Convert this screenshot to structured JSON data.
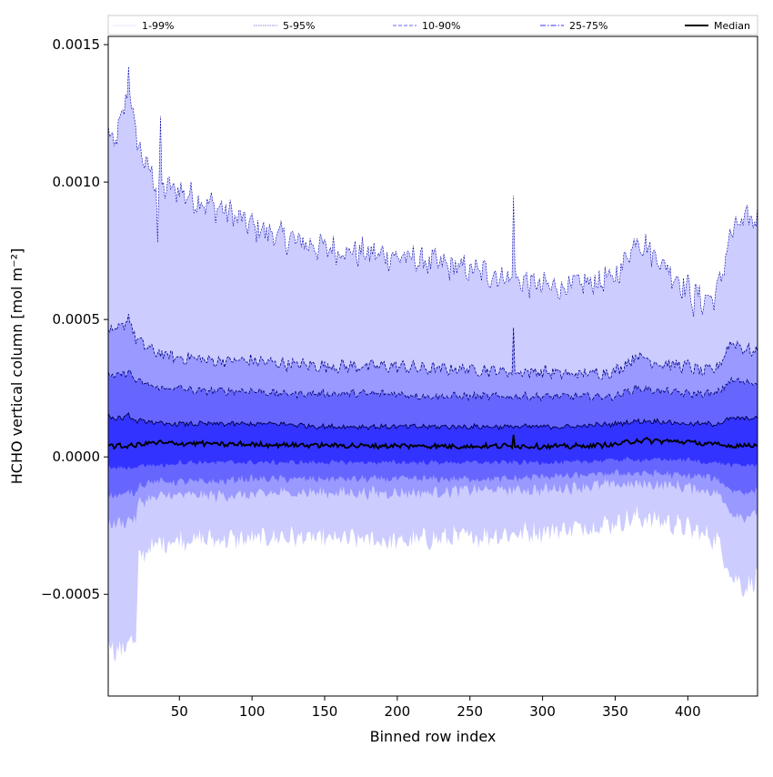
{
  "chart_data": {
    "type": "area",
    "title": "",
    "xlabel": "Binned row index",
    "ylabel": "HCHO vertical column [mol m⁻²]",
    "xlim": [
      1,
      448
    ],
    "ylim": [
      -0.00087,
      0.00153
    ],
    "xticks": [
      50,
      100,
      150,
      200,
      250,
      300,
      350,
      400
    ],
    "xtick_labels": [
      "50",
      "100",
      "150",
      "200",
      "250",
      "300",
      "350",
      "400"
    ],
    "yticks": [
      -0.0005,
      0.0,
      0.0005,
      0.001,
      0.0015
    ],
    "ytick_labels": [
      "−0.0005",
      "0.0000",
      "0.0005",
      "0.0010",
      "0.0015"
    ],
    "grid": false,
    "legend_position": "top",
    "legend": [
      {
        "label": "1-99%",
        "color": "#ccccff",
        "style": "solid-thin"
      },
      {
        "label": "5-95%",
        "color": "#9999ff",
        "style": "dotted"
      },
      {
        "label": "10-90%",
        "color": "#6666ff",
        "style": "dashed"
      },
      {
        "label": "25-75%",
        "color": "#3333ff",
        "style": "dashdot"
      },
      {
        "label": "Median",
        "color": "#000000",
        "style": "solid"
      }
    ],
    "x_knots": [
      1,
      5,
      10,
      15,
      20,
      22,
      25,
      30,
      35,
      40,
      50,
      60,
      70,
      80,
      90,
      100,
      120,
      150,
      180,
      200,
      220,
      250,
      280,
      300,
      320,
      350,
      365,
      380,
      400,
      410,
      420,
      430,
      440,
      448
    ],
    "series": [
      {
        "name": "1-99%",
        "fill": "#ccccff",
        "upper": [
          0.00118,
          0.00113,
          0.00122,
          0.00136,
          0.00118,
          0.00112,
          0.00109,
          0.00103,
          0.001,
          0.00098,
          0.00097,
          0.00094,
          0.00092,
          0.0009,
          0.00087,
          0.00084,
          0.0008,
          0.00076,
          0.00074,
          0.00073,
          0.00071,
          0.00068,
          0.00065,
          0.00062,
          0.00062,
          0.00065,
          0.0008,
          0.00072,
          0.00061,
          0.00057,
          0.00059,
          0.00082,
          0.00086,
          0.00087
        ],
        "lower": [
          -0.00066,
          -0.0007,
          -0.00071,
          -0.00066,
          -0.00068,
          -0.00038,
          -0.00035,
          -0.00033,
          -0.00032,
          -0.00031,
          -0.0003,
          -0.0003,
          -0.0003,
          -0.0003,
          -0.0003,
          -0.0003,
          -0.00029,
          -0.0003,
          -0.0003,
          -0.00031,
          -0.0003,
          -0.00029,
          -0.00028,
          -0.00027,
          -0.00026,
          -0.00024,
          -0.00022,
          -0.00023,
          -0.00026,
          -0.00028,
          -0.0003,
          -0.00043,
          -0.00048,
          -0.00043
        ]
      },
      {
        "name": "5-95%",
        "fill": "#9999ff",
        "upper": [
          0.00046,
          0.00045,
          0.00047,
          0.00051,
          0.00043,
          0.00042,
          0.00041,
          0.00039,
          0.00038,
          0.00037,
          0.00036,
          0.00036,
          0.00035,
          0.00035,
          0.00035,
          0.00035,
          0.00034,
          0.00033,
          0.00033,
          0.00033,
          0.00032,
          0.00032,
          0.00031,
          0.00031,
          0.0003,
          0.00031,
          0.00037,
          0.00034,
          0.00033,
          0.00031,
          0.00032,
          0.00042,
          0.00039,
          0.00038
        ],
        "lower": [
          -0.00025,
          -0.00024,
          -0.00024,
          -0.00023,
          -0.00022,
          -0.00017,
          -0.00016,
          -0.00015,
          -0.00015,
          -0.00014,
          -0.00014,
          -0.00014,
          -0.00014,
          -0.00014,
          -0.00014,
          -0.00014,
          -0.00013,
          -0.00013,
          -0.00013,
          -0.00013,
          -0.00013,
          -0.00012,
          -0.00012,
          -0.00012,
          -0.00011,
          -0.0001,
          -0.0001,
          -0.0001,
          -0.00011,
          -0.00012,
          -0.00013,
          -0.0002,
          -0.00022,
          -0.0002
        ]
      },
      {
        "name": "10-90%",
        "fill": "#6666ff",
        "upper": [
          0.0003,
          0.00029,
          0.0003,
          0.00031,
          0.00028,
          0.00027,
          0.00027,
          0.00026,
          0.00025,
          0.00025,
          0.00025,
          0.00024,
          0.00024,
          0.00024,
          0.00024,
          0.00024,
          0.00023,
          0.00023,
          0.00023,
          0.00023,
          0.00022,
          0.00022,
          0.00022,
          0.00022,
          0.00022,
          0.00022,
          0.00025,
          0.00024,
          0.00023,
          0.00023,
          0.00023,
          0.00028,
          0.00027,
          0.00027
        ],
        "lower": [
          -0.00014,
          -0.00014,
          -0.00014,
          -0.00013,
          -0.00013,
          -0.0001,
          -0.0001,
          -9e-05,
          -9e-05,
          -9e-05,
          -9e-05,
          -9e-05,
          -9e-05,
          -9e-05,
          -8e-05,
          -8e-05,
          -8e-05,
          -8e-05,
          -8e-05,
          -8e-05,
          -8e-05,
          -8e-05,
          -8e-05,
          -7e-05,
          -7e-05,
          -6e-05,
          -6e-05,
          -6e-05,
          -7e-05,
          -7e-05,
          -8e-05,
          -0.00012,
          -0.00013,
          -0.00012
        ]
      },
      {
        "name": "25-75%",
        "fill": "#3333ff",
        "upper": [
          0.00015,
          0.00014,
          0.00014,
          0.00015,
          0.00013,
          0.00013,
          0.00013,
          0.00013,
          0.00012,
          0.00012,
          0.00012,
          0.00012,
          0.00012,
          0.00012,
          0.00012,
          0.00012,
          0.00012,
          0.00011,
          0.00011,
          0.00011,
          0.00011,
          0.00011,
          0.00011,
          0.00011,
          0.00011,
          0.00012,
          0.00013,
          0.00013,
          0.00012,
          0.00012,
          0.00012,
          0.00014,
          0.00014,
          0.00014
        ],
        "lower": [
          -4e-05,
          -4e-05,
          -4e-05,
          -4e-05,
          -4e-05,
          -3e-05,
          -3e-05,
          -3e-05,
          -3e-05,
          -3e-05,
          -2e-05,
          -2e-05,
          -2e-05,
          -2e-05,
          -2e-05,
          -2e-05,
          -2e-05,
          -2e-05,
          -2e-05,
          -2e-05,
          -2e-05,
          -2e-05,
          -2e-05,
          -2e-05,
          -2e-05,
          -1e-05,
          -1e-05,
          -1e-05,
          -1e-05,
          -2e-05,
          -2e-05,
          -3e-05,
          -3e-05,
          -3e-05
        ]
      },
      {
        "name": "Median",
        "color": "#000000",
        "values": [
          4.5e-05,
          4e-05,
          3.8e-05,
          4e-05,
          4.2e-05,
          4.5e-05,
          4.8e-05,
          5e-05,
          5.2e-05,
          5e-05,
          4.8e-05,
          5e-05,
          4.8e-05,
          4.5e-05,
          4.6e-05,
          4.5e-05,
          4.4e-05,
          4.2e-05,
          4e-05,
          4e-05,
          4e-05,
          3.8e-05,
          4e-05,
          3.8e-05,
          3.8e-05,
          4.5e-05,
          6e-05,
          5.8e-05,
          5.5e-05,
          4.8e-05,
          4.5e-05,
          4e-05,
          4.2e-05,
          4.5e-05
        ]
      }
    ],
    "spikes": [
      {
        "x": 15,
        "upper_1_99": 0.00142
      },
      {
        "x": 35,
        "upper_1_99": 0.00078
      },
      {
        "x": 37,
        "upper_1_99": 0.00124
      },
      {
        "x": 280,
        "upper_1_99": 0.00095,
        "upper_5_95": 0.00047,
        "median": 8e-05
      },
      {
        "x": 404,
        "upper_1_99": 0.00051
      }
    ]
  }
}
